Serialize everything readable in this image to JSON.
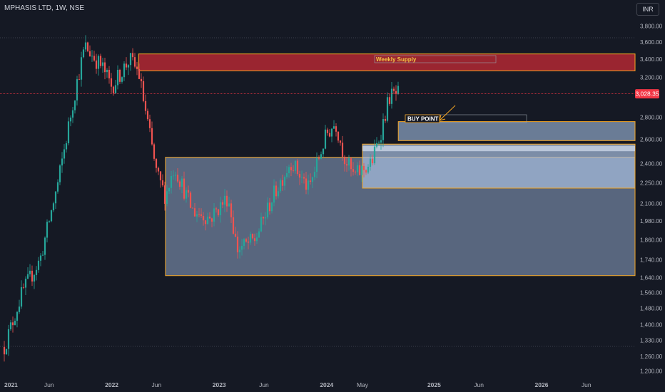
{
  "header": {
    "symbol": "MPHASIS LTD, 1W, NSE",
    "currency": "INR"
  },
  "price_axis": {
    "labels": [
      "3,800.00",
      "3,600.00",
      "3,400.00",
      "3,200.00",
      "2,800.00",
      "2,600.00",
      "2,400.00",
      "2,250.00",
      "2,100.00",
      "1,980.00",
      "1,860.00",
      "1,740.00",
      "1,640.00",
      "1,560.00",
      "1,480.00",
      "1,400.00",
      "1,330.00",
      "1,260.00",
      "1,200.00"
    ],
    "current_price": "3,028.35"
  },
  "time_axis": {
    "labels": [
      "2021",
      "Jun",
      "2022",
      "Jun",
      "2023",
      "Jun",
      "2024",
      "May",
      "2025",
      "Jun",
      "2026",
      "Jun"
    ]
  },
  "chart_data": {
    "type": "candlestick",
    "title": "MPHASIS LTD, 1W, NSE",
    "y_scale": "log",
    "ylim": [
      1180,
      3950
    ],
    "xlim": [
      "2021-01",
      "2026-09"
    ],
    "series": [
      {
        "date": "2021-01",
        "close": 1300
      },
      {
        "date": "2021-03",
        "close": 1560
      },
      {
        "date": "2021-05",
        "close": 1740
      },
      {
        "date": "2021-07",
        "close": 2250
      },
      {
        "date": "2021-09",
        "close": 3100
      },
      {
        "date": "2021-10",
        "close": 3550
      },
      {
        "date": "2021-12",
        "close": 3300
      },
      {
        "date": "2022-01",
        "close": 3100
      },
      {
        "date": "2022-03",
        "close": 3400
      },
      {
        "date": "2022-04",
        "close": 3250
      },
      {
        "date": "2022-05",
        "close": 2750
      },
      {
        "date": "2022-06",
        "close": 2320
      },
      {
        "date": "2022-07",
        "close": 2150
      },
      {
        "date": "2022-08",
        "close": 2380
      },
      {
        "date": "2022-10",
        "close": 2050
      },
      {
        "date": "2022-12",
        "close": 2000
      },
      {
        "date": "2023-02",
        "close": 2150
      },
      {
        "date": "2023-03",
        "close": 1800
      },
      {
        "date": "2023-05",
        "close": 1860
      },
      {
        "date": "2023-07",
        "close": 2150
      },
      {
        "date": "2023-09",
        "close": 2420
      },
      {
        "date": "2023-11",
        "close": 2200
      },
      {
        "date": "2024-01",
        "close": 2650
      },
      {
        "date": "2024-02",
        "close": 2750
      },
      {
        "date": "2024-03",
        "close": 2450
      },
      {
        "date": "2024-04",
        "close": 2300
      },
      {
        "date": "2024-06",
        "close": 2400
      },
      {
        "date": "2024-07",
        "close": 2650
      },
      {
        "date": "2024-08",
        "close": 3000
      },
      {
        "date": "2024-09",
        "close": 3028.35
      }
    ],
    "zones": [
      {
        "label": "Weekly Supply",
        "from": "2022-04",
        "to": "2026-09",
        "low": 3270,
        "high": 3460,
        "kind": "supply"
      },
      {
        "label": "",
        "from": "2022-07",
        "to": "2026-09",
        "low": 1650,
        "high": 2450,
        "kind": "demand"
      },
      {
        "label": "",
        "from": "2024-05",
        "to": "2026-09",
        "low": 2210,
        "high": 2560,
        "kind": "demand"
      },
      {
        "label": "",
        "from": "2024-09",
        "to": "2026-09",
        "low": 2590,
        "high": 2760,
        "kind": "demand"
      }
    ],
    "annotations": [
      {
        "text": "BUY POINT",
        "date": "2024-09",
        "price": 2760
      }
    ],
    "current_price": 3028.35
  },
  "colors": {
    "background": "#151924",
    "up": "#26a69a",
    "down": "#ef5350",
    "supply_zone": "#b22833",
    "demand_zone": "#8fa6c8",
    "zone_border": "#f5a623",
    "price_line": "#f23645"
  }
}
